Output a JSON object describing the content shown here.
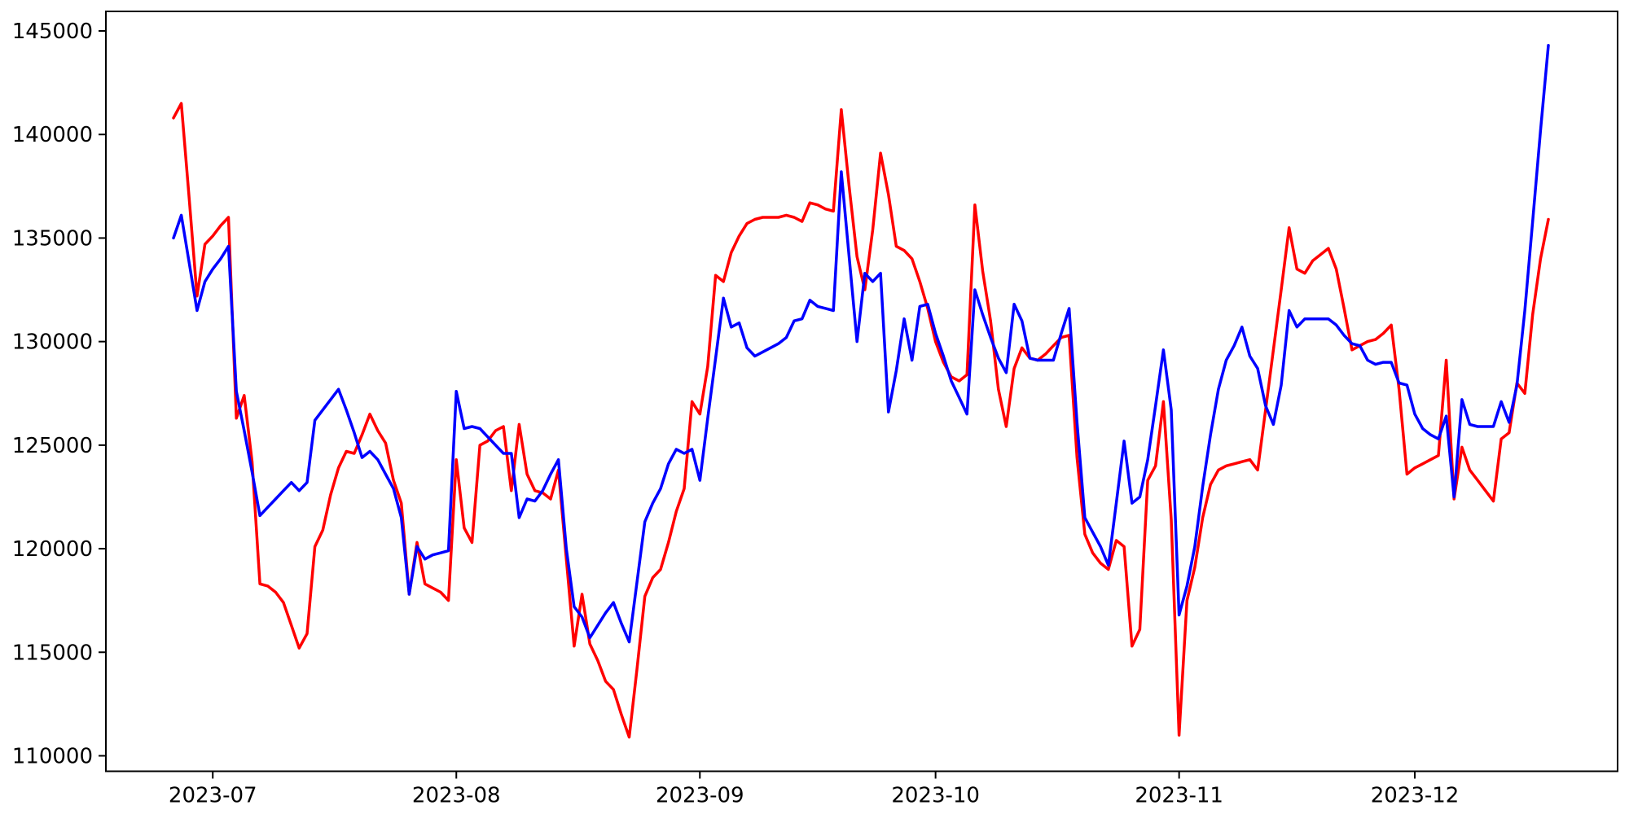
{
  "figure": {
    "background": "#ffffff",
    "spine_color": "#000000",
    "tick_color": "#000000",
    "tick_label_color": "#000000"
  },
  "chart_data": {
    "type": "line",
    "title": "",
    "xlabel": "",
    "ylabel": "",
    "grid": false,
    "legend": null,
    "start_date": "2023-06-26",
    "end_date": "2023-12-18",
    "x_tick_labels": [
      "2023-07",
      "2023-08",
      "2023-09",
      "2023-10",
      "2023-11",
      "2023-12"
    ],
    "x_tick_day_index": [
      5,
      36,
      67,
      97,
      128,
      158
    ],
    "y_tick_labels": [
      "110000",
      "115000",
      "120000",
      "125000",
      "130000",
      "135000",
      "140000",
      "145000"
    ],
    "y_ticks": [
      110000,
      115000,
      120000,
      125000,
      130000,
      135000,
      140000,
      145000
    ],
    "ylim": [
      109000,
      145950
    ],
    "series": [
      {
        "name": "red",
        "color": "#ff0000",
        "line_width": 3.5,
        "values": [
          140800,
          141500,
          136900,
          132200,
          134700,
          135100,
          135600,
          136000,
          126300,
          127400,
          124200,
          118300,
          118200,
          117900,
          117400,
          116300,
          115200,
          115900,
          120100,
          120900,
          122600,
          123900,
          124700,
          124600,
          125500,
          126500,
          125700,
          125100,
          123300,
          122200,
          117800,
          120300,
          118300,
          118100,
          117900,
          117500,
          124300,
          121000,
          120300,
          125000,
          125200,
          125700,
          125900,
          122800,
          126000,
          123600,
          122800,
          122700,
          122400,
          123800,
          119500,
          115300,
          117800,
          115400,
          114600,
          113600,
          113200,
          112000,
          110900,
          114200,
          117700,
          118600,
          119000,
          120300,
          121800,
          122900,
          127100,
          126500,
          128800,
          133200,
          132900,
          134300,
          135100,
          135700,
          135900,
          136000,
          136000,
          136000,
          136100,
          136000,
          135800,
          136700,
          136600,
          136400,
          136300,
          141200,
          137500,
          134100,
          132500,
          135400,
          139100,
          137100,
          134600,
          134400,
          134000,
          132900,
          131600,
          130000,
          129000,
          128300,
          128100,
          128400,
          136600,
          133400,
          131000,
          127700,
          125900,
          128700,
          129700,
          129200,
          129100,
          129400,
          129800,
          130200,
          130300,
          124400,
          120700,
          119800,
          119300,
          119000,
          120400,
          120100,
          115300,
          116100,
          123300,
          124000,
          127100,
          121400,
          111000,
          117500,
          119100,
          121500,
          123100,
          123800,
          124000,
          124100,
          124200,
          124300,
          123800,
          126700,
          129600,
          132500,
          135500,
          133500,
          133300,
          133900,
          134200,
          134500,
          133500,
          131600,
          129600,
          129800,
          130000,
          130100,
          130400,
          130800,
          127700,
          123600,
          123900,
          124100,
          124300,
          124500,
          129100,
          122400,
          124900,
          123800,
          123300,
          122800,
          122300,
          125300,
          125600,
          128000,
          127500,
          131300,
          134000,
          135900
        ]
      },
      {
        "name": "blue",
        "color": "#0000ff",
        "line_width": 3.5,
        "values": [
          135000,
          136100,
          133800,
          131500,
          132900,
          133500,
          134000,
          134600,
          127600,
          125700,
          123700,
          121600,
          122000,
          122400,
          122800,
          123200,
          122800,
          123200,
          126200,
          126700,
          127200,
          127700,
          126700,
          125600,
          124400,
          124700,
          124300,
          123600,
          122900,
          121500,
          117800,
          120100,
          119500,
          119700,
          119800,
          119900,
          127600,
          125800,
          125900,
          125800,
          125400,
          125000,
          124600,
          124600,
          121500,
          122400,
          122300,
          122800,
          123600,
          124300,
          120000,
          117200,
          116700,
          115700,
          116300,
          116900,
          117400,
          116400,
          115500,
          118400,
          121300,
          122200,
          122900,
          124100,
          124800,
          124600,
          124800,
          123300,
          126300,
          129200,
          132100,
          130700,
          130900,
          129700,
          129300,
          129500,
          129700,
          129900,
          130200,
          131000,
          131100,
          132000,
          131700,
          131600,
          131500,
          138200,
          134100,
          130000,
          133300,
          132900,
          133300,
          126600,
          128600,
          131100,
          129100,
          131700,
          131800,
          130400,
          129300,
          128100,
          127300,
          126500,
          132500,
          131300,
          130200,
          129200,
          128500,
          131800,
          131000,
          129200,
          129100,
          129100,
          129100,
          130400,
          131600,
          126100,
          121500,
          120800,
          120100,
          119200,
          122200,
          125200,
          122200,
          122500,
          124300,
          126900,
          129600,
          126700,
          116800,
          118200,
          120100,
          123000,
          125500,
          127700,
          129100,
          129800,
          130700,
          129300,
          128700,
          126900,
          126000,
          127900,
          131500,
          130700,
          131100,
          131100,
          131100,
          131100,
          130800,
          130300,
          129900,
          129800,
          129100,
          128900,
          129000,
          129000,
          128000,
          127900,
          126500,
          125800,
          125500,
          125300,
          126400,
          122500,
          127200,
          126000,
          125900,
          125900,
          125900,
          127100,
          126100,
          127900,
          131500,
          135800,
          140200,
          144300
        ]
      }
    ]
  }
}
